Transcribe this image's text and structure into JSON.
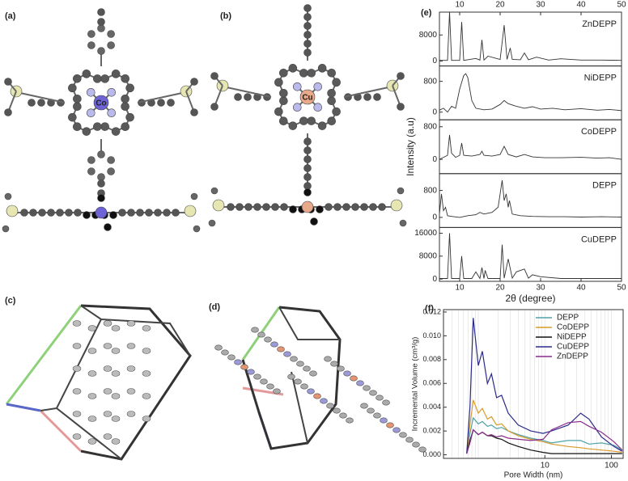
{
  "figure": {
    "labels": [
      "(a)",
      "(b)",
      "(c)",
      "(d)"
    ],
    "metals": [
      "Co",
      "Cu"
    ]
  },
  "chart_data": [
    {
      "type": "stacked-line",
      "label": "(e)",
      "ylabel": "Intensity (a.u)",
      "xlabel": "2θ (degree)",
      "xlim": [
        5,
        50
      ],
      "xticks": [
        10,
        20,
        30,
        40,
        50
      ],
      "color": "#333333",
      "panels": [
        {
          "name": "ZnDEPP",
          "ylim": [
            -1500,
            15000
          ],
          "yticks": [
            0,
            8000
          ],
          "x": [
            5,
            7,
            7.5,
            8,
            10,
            10.5,
            11,
            14,
            15,
            15.5,
            16,
            17,
            20,
            21,
            21.7,
            22.5,
            23,
            25,
            26,
            27,
            29,
            32,
            35,
            40,
            45,
            50
          ],
          "values": [
            200,
            200,
            15000,
            200,
            200,
            12000,
            200,
            800,
            300,
            6500,
            300,
            1500,
            500,
            11000,
            500,
            4000,
            500,
            400,
            2500,
            400,
            1200,
            300,
            700,
            300,
            300,
            200
          ]
        },
        {
          "name": "NiDEPP",
          "ylim": [
            -200,
            1200
          ],
          "yticks": [
            0,
            800
          ],
          "x": [
            5,
            6,
            7,
            8,
            9,
            10,
            11,
            11.5,
            12,
            13,
            14,
            16,
            18,
            20,
            21,
            22,
            24,
            26,
            28,
            30,
            33,
            36,
            40,
            44,
            47,
            50
          ],
          "values": [
            50,
            100,
            0,
            150,
            100,
            600,
            950,
            1000,
            900,
            300,
            100,
            60,
            80,
            200,
            300,
            220,
            150,
            100,
            140,
            80,
            100,
            60,
            90,
            50,
            70,
            40
          ]
        },
        {
          "name": "CoDEPP",
          "ylim": [
            -350,
            970
          ],
          "yticks": [
            0,
            800
          ],
          "x": [
            5,
            6,
            7,
            7.5,
            8,
            9,
            10,
            10.5,
            11,
            13,
            15,
            15.5,
            16,
            18,
            20,
            21,
            22,
            24,
            26,
            28,
            31,
            35,
            40,
            44,
            47,
            50
          ],
          "values": [
            0,
            50,
            100,
            600,
            150,
            50,
            100,
            400,
            100,
            80,
            120,
            200,
            100,
            80,
            120,
            320,
            120,
            60,
            120,
            60,
            40,
            40,
            50,
            30,
            40,
            0
          ]
        },
        {
          "name": "DEPP",
          "ylim": [
            -300,
            1300
          ],
          "yticks": [
            0,
            800
          ],
          "x": [
            5,
            5.5,
            6,
            6.5,
            7,
            8,
            10,
            12,
            14,
            15,
            16,
            18,
            19.5,
            20.5,
            21,
            21.5,
            22,
            22.3,
            23,
            25,
            28,
            32,
            36,
            40,
            45,
            50
          ],
          "values": [
            100,
            700,
            200,
            300,
            50,
            30,
            0,
            50,
            80,
            150,
            100,
            150,
            300,
            1100,
            500,
            700,
            300,
            500,
            100,
            50,
            30,
            20,
            20,
            10,
            20,
            10
          ]
        },
        {
          "name": "CuDEPP",
          "ylim": [
            -800,
            18000
          ],
          "yticks": [
            0,
            8000,
            16000
          ],
          "x": [
            5,
            7,
            7.5,
            8,
            10,
            10.5,
            11,
            13,
            14,
            15,
            15.5,
            16,
            16.3,
            17,
            20,
            20.5,
            21,
            22,
            23,
            24,
            26,
            27,
            28,
            30,
            35,
            50
          ],
          "values": [
            200,
            200,
            16000,
            200,
            200,
            8000,
            200,
            200,
            2500,
            200,
            4000,
            200,
            3000,
            200,
            200,
            12000,
            300,
            7000,
            300,
            2500,
            3500,
            300,
            1500,
            800,
            200,
            200
          ]
        }
      ]
    },
    {
      "type": "line",
      "label": "(f)",
      "xlabel": "Pore Width (nm)",
      "ylabel": "Incremental Volume (cm³/g)",
      "log_x": true,
      "grid": true,
      "legend": "upper-right",
      "xlim": [
        0.3,
        150
      ],
      "xticks": [
        10,
        100
      ],
      "ylim": [
        -0.0003,
        0.0122
      ],
      "yticks": [
        {
          "value": 0,
          "label": "0.000"
        },
        {
          "value": 0.002,
          "label": "0.002"
        },
        {
          "value": 0.004,
          "label": "0.004"
        },
        {
          "value": 0.006,
          "label": "0.006"
        },
        {
          "value": 0.008,
          "label": "0.008"
        },
        {
          "value": 0.01,
          "label": "0.010"
        },
        {
          "value": 0.012,
          "label": "0.012"
        }
      ],
      "x": [
        0.67,
        0.75,
        0.84,
        1.0,
        1.15,
        1.37,
        1.58,
        1.88,
        2.24,
        2.82,
        3.98,
        6.13,
        9.4,
        12.6,
        22.4,
        34.5,
        46,
        70.8,
        109,
        145
      ],
      "series": [
        {
          "name": "DEPP",
          "color": "#4fa3a8",
          "values": [
            0.0001,
            0.0018,
            0.0031,
            0.0026,
            0.0028,
            0.0024,
            0.0025,
            0.0022,
            0.0023,
            0.002,
            0.0017,
            0.0014,
            0.0012,
            0.001,
            0.0012,
            0.0012,
            0.0009,
            0.001,
            0.0008,
            0.0004
          ]
        },
        {
          "name": "CoDEPP",
          "color": "#d89b2b",
          "values": [
            0.0001,
            0.0025,
            0.0046,
            0.0035,
            0.0039,
            0.003,
            0.0032,
            0.0025,
            0.0026,
            0.002,
            0.0016,
            0.0013,
            0.0011,
            0.0009,
            0.0007,
            0.0006,
            0.0005,
            0.0004,
            0.0003,
            0.0002
          ]
        },
        {
          "name": "NiDEPP",
          "color": "#111111",
          "values": [
            0.0001,
            0.0012,
            0.0021,
            0.0017,
            0.0019,
            0.0016,
            0.0016,
            0.0014,
            0.0013,
            0.001,
            0.0007,
            0.0004,
            0.0002,
            0.0001,
            0.0001,
            0.0001,
            0.0001,
            0.0001,
            0.0001,
            0.0001
          ]
        },
        {
          "name": "CuDEPP",
          "color": "#2b2a8a",
          "values": [
            0.0001,
            0.004,
            0.0115,
            0.0075,
            0.0087,
            0.006,
            0.0068,
            0.0048,
            0.005,
            0.0035,
            0.0025,
            0.002,
            0.0018,
            0.002,
            0.0025,
            0.0035,
            0.003,
            0.0015,
            0.0007,
            0.0003
          ]
        },
        {
          "name": "ZnDEPP",
          "color": "#8b2d8b",
          "values": [
            0.0001,
            0.001,
            0.0021,
            0.0017,
            0.0019,
            0.0016,
            0.0017,
            0.0015,
            0.0016,
            0.0014,
            0.0013,
            0.0012,
            0.0013,
            0.0021,
            0.0027,
            0.0028,
            0.0024,
            0.0019,
            0.0011,
            0.0004
          ]
        }
      ]
    }
  ]
}
